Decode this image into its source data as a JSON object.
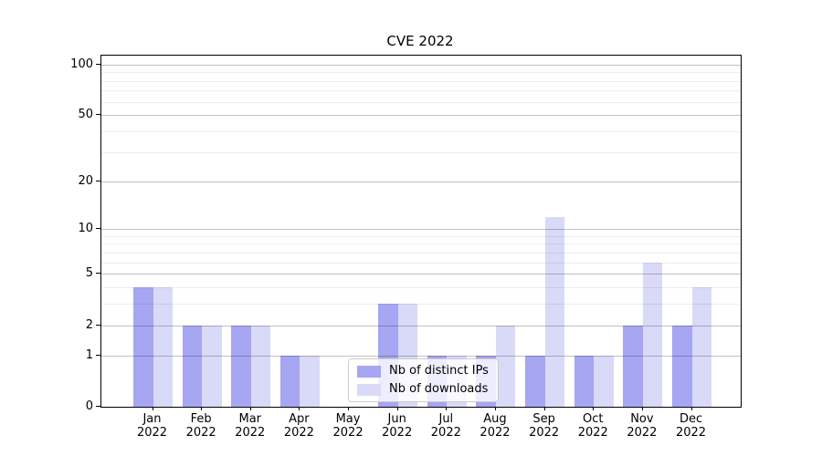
{
  "chart_data": {
    "type": "bar",
    "title": "CVE 2022",
    "categories": [
      "Jan 2022",
      "Feb 2022",
      "Mar 2022",
      "Apr 2022",
      "May 2022",
      "Jun 2022",
      "Jul 2022",
      "Aug 2022",
      "Sep 2022",
      "Oct 2022",
      "Nov 2022",
      "Dec 2022"
    ],
    "series": [
      {
        "name": "Nb of distinct IPs",
        "color": "#a6a6f2",
        "values": [
          4,
          2,
          2,
          1,
          0,
          3,
          1,
          1,
          1,
          1,
          2,
          2
        ]
      },
      {
        "name": "Nb of downloads",
        "color": "#d9d9f8",
        "values": [
          4,
          2,
          2,
          1,
          0,
          3,
          1,
          2,
          12,
          1,
          6,
          4
        ]
      }
    ],
    "y_scale": "log1p",
    "y_axis_ticks": [
      0,
      1,
      2,
      5,
      10,
      20,
      50,
      100
    ],
    "y_axis_minor_ticks": [
      3,
      4,
      6,
      7,
      8,
      9,
      30,
      40,
      60,
      70,
      80,
      90
    ],
    "y_axis_max": 113,
    "grid": true,
    "legend_position": "lower center",
    "colors": {
      "bar_distinct_ips": "#a6a6f2",
      "bar_downloads": "#d9d9f8",
      "grid_major": "rgba(0,0,0,0.24)",
      "grid_minor": "rgba(0,0,0,0.07)",
      "axis": "#000000"
    }
  }
}
